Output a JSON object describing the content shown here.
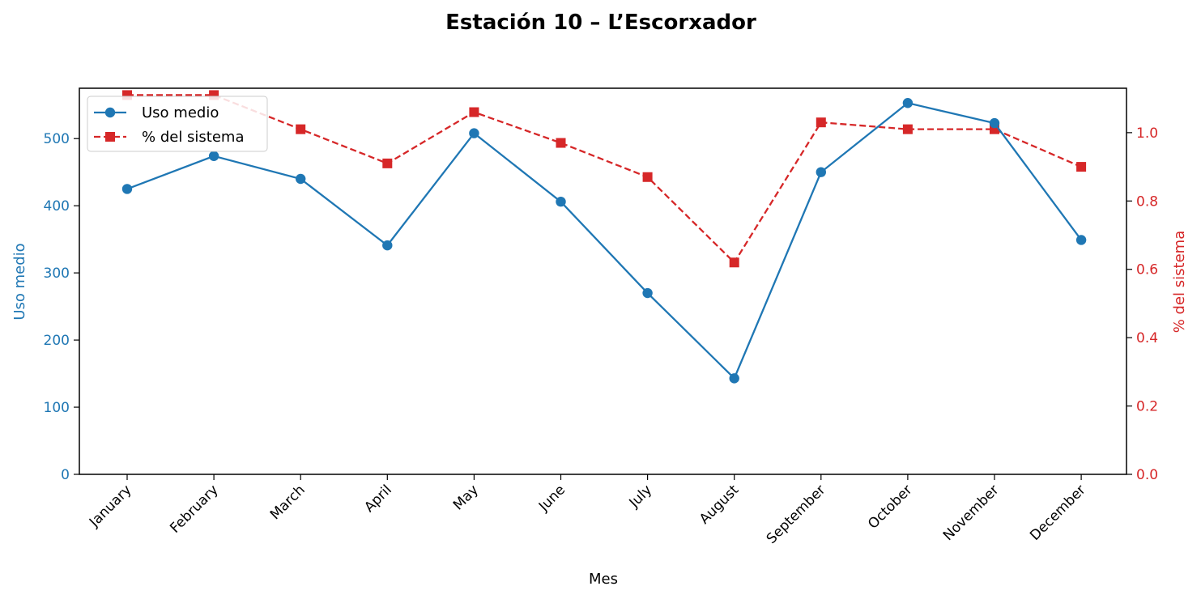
{
  "chart_data": {
    "type": "line",
    "title": "Estación 10 – L’Escorxador",
    "xlabel": "Mes",
    "ylabel_left": "Uso medio",
    "ylabel_right": "% del sistema",
    "categories": [
      "January",
      "February",
      "March",
      "April",
      "May",
      "June",
      "July",
      "August",
      "September",
      "October",
      "November",
      "December"
    ],
    "y_left": {
      "lim": [
        0,
        575
      ],
      "ticks": [
        "0",
        "100",
        "200",
        "300",
        "400",
        "500"
      ]
    },
    "y_right": {
      "lim": [
        0,
        1.13
      ],
      "ticks": [
        "0.0",
        "0.2",
        "0.4",
        "0.6",
        "0.8",
        "1.0"
      ]
    },
    "series": [
      {
        "name": "Uso medio",
        "axis": "left",
        "color": "#1f77b4",
        "style": "solid",
        "marker": "circle",
        "values": [
          425,
          474,
          440,
          341,
          508,
          406,
          270,
          143,
          450,
          553,
          523,
          349
        ]
      },
      {
        "name": "% del sistema",
        "axis": "right",
        "color": "#d62728",
        "style": "dashed",
        "marker": "square",
        "values": [
          1.11,
          1.11,
          1.01,
          0.91,
          1.06,
          0.97,
          0.87,
          0.62,
          1.03,
          1.01,
          1.01,
          0.9
        ]
      }
    ],
    "legend": "top-left",
    "grid": false
  }
}
